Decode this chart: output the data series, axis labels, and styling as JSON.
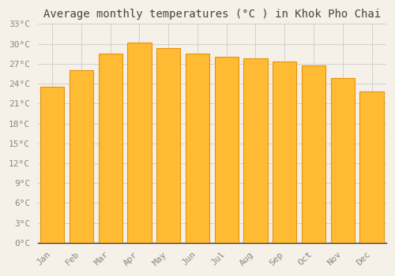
{
  "title": "Average monthly temperatures (°C ) in Khok Pho Chai",
  "months": [
    "Jan",
    "Feb",
    "Mar",
    "Apr",
    "May",
    "Jun",
    "Jul",
    "Aug",
    "Sep",
    "Oct",
    "Nov",
    "Dec"
  ],
  "values": [
    23.5,
    26.0,
    28.5,
    30.2,
    29.4,
    28.5,
    28.0,
    27.8,
    27.3,
    26.8,
    24.8,
    22.8
  ],
  "bar_color": "#FFBB33",
  "bar_edge_color": "#E8920A",
  "ylim": [
    0,
    33
  ],
  "yticks": [
    0,
    3,
    6,
    9,
    12,
    15,
    18,
    21,
    24,
    27,
    30,
    33
  ],
  "ytick_labels": [
    "0°C",
    "3°C",
    "6°C",
    "9°C",
    "12°C",
    "15°C",
    "18°C",
    "21°C",
    "24°C",
    "27°C",
    "30°C",
    "33°C"
  ],
  "title_fontsize": 10,
  "tick_fontsize": 8,
  "background_color": "#f5f0e8",
  "plot_bg_color": "#f5f0e8",
  "grid_color": "#cccccc",
  "tick_color": "#888888",
  "spine_color": "#333333"
}
